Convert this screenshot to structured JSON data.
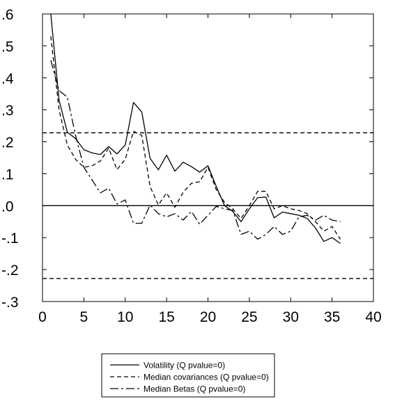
{
  "chart_data": {
    "type": "line",
    "title": "",
    "xlabel": "",
    "ylabel": "",
    "xlim": [
      0,
      40
    ],
    "ylim": [
      -0.3,
      0.6
    ],
    "x_ticks": [
      0,
      5,
      10,
      15,
      20,
      25,
      30,
      35,
      40
    ],
    "x_tick_labels": [
      "0",
      "5",
      "10",
      "15",
      "20",
      "25",
      "30",
      "35",
      "40"
    ],
    "y_ticks": [
      0.6,
      0.5,
      0.4,
      0.3,
      0.2,
      0.1,
      0.0,
      -0.1,
      -0.2,
      -0.3
    ],
    "y_tick_labels": [
      ".6",
      ".5",
      ".4",
      ".3",
      ".2",
      ".1",
      ".0",
      "-.1",
      "-.2",
      "-.3"
    ],
    "grid": false,
    "legend_position": "bottom-center",
    "reference_lines": [
      {
        "y": 0.228,
        "style": "dashed"
      },
      {
        "y": 0.0,
        "style": "solid"
      },
      {
        "y": -0.228,
        "style": "dashed"
      }
    ],
    "x": [
      1,
      2,
      3,
      4,
      5,
      6,
      7,
      8,
      9,
      10,
      11,
      12,
      13,
      14,
      15,
      16,
      17,
      18,
      19,
      20,
      21,
      22,
      23,
      24,
      25,
      26,
      27,
      28,
      29,
      30,
      31,
      32,
      33,
      34,
      35,
      36
    ],
    "series": [
      {
        "name": "Volatility (Q pvalue=0)",
        "style": "solid",
        "values": [
          0.6,
          0.33,
          0.23,
          0.21,
          0.175,
          0.165,
          0.16,
          0.185,
          0.162,
          0.19,
          0.323,
          0.293,
          0.148,
          0.112,
          0.158,
          0.108,
          0.136,
          0.122,
          0.105,
          0.125,
          0.06,
          0.0,
          -0.018,
          -0.05,
          -0.01,
          0.025,
          0.027,
          -0.038,
          -0.02,
          -0.025,
          -0.03,
          -0.04,
          -0.07,
          -0.112,
          -0.1,
          -0.118
        ]
      },
      {
        "name": "Median covariances (Q pvalue=0)",
        "style": "dashed",
        "values": [
          0.53,
          0.3,
          0.19,
          0.145,
          0.12,
          0.125,
          0.14,
          0.18,
          0.113,
          0.145,
          0.233,
          0.22,
          0.06,
          0.002,
          0.04,
          -0.005,
          0.042,
          0.07,
          0.075,
          0.12,
          0.05,
          0.01,
          -0.01,
          -0.04,
          0.0,
          0.045,
          0.045,
          -0.01,
          0.0,
          -0.01,
          -0.015,
          -0.025,
          -0.05,
          -0.08,
          -0.065,
          -0.105
        ]
      },
      {
        "name": "Median Betas (Q pvalue=0)",
        "style": "dashdot",
        "values": [
          0.455,
          0.36,
          0.34,
          0.22,
          0.12,
          0.08,
          0.04,
          0.055,
          0.005,
          0.018,
          -0.055,
          -0.055,
          0.002,
          -0.025,
          -0.035,
          -0.025,
          -0.045,
          -0.018,
          -0.058,
          -0.03,
          -0.002,
          -0.01,
          -0.015,
          -0.09,
          -0.08,
          -0.105,
          -0.09,
          -0.065,
          -0.09,
          -0.08,
          -0.035,
          -0.03,
          -0.045,
          -0.03,
          -0.045,
          -0.05
        ]
      }
    ]
  }
}
